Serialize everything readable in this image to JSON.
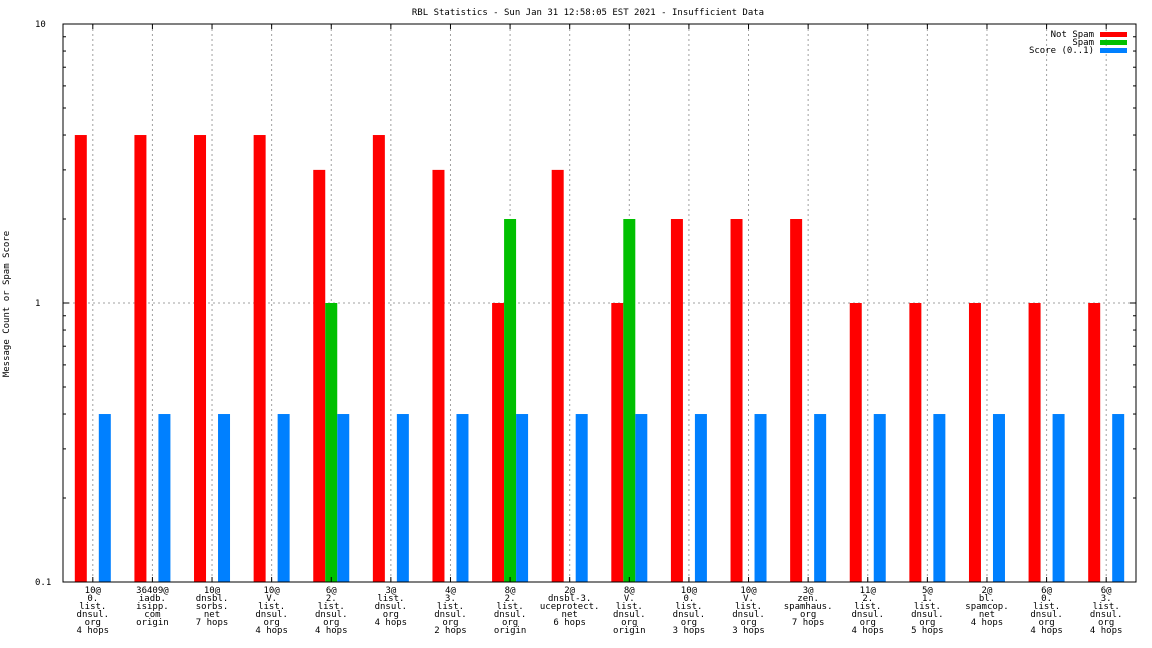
{
  "chart_data": {
    "type": "bar",
    "title": "RBL Statistics - Sun Jan 31 12:58:05 EST 2021 - Insufficient Data",
    "ylabel": "Message Count or Spam Score",
    "xlabel": "",
    "yscale": "log",
    "ylim": [
      0.1,
      10
    ],
    "yticks": [
      {
        "value": 0.1,
        "label": "0.1"
      },
      {
        "value": 1,
        "label": "1"
      },
      {
        "value": 10,
        "label": "10"
      }
    ],
    "grid": true,
    "legend_position": "top-right",
    "categories": [
      [
        "10@",
        "0.",
        "list.",
        "dnsul.",
        "org",
        "4 hops"
      ],
      [
        "36409@",
        "iadb.",
        "isipp.",
        "com",
        "origin"
      ],
      [
        "10@",
        "dnsbl.",
        "sorbs.",
        "net",
        "7 hops"
      ],
      [
        "10@",
        "V.",
        "list.",
        "dnsul.",
        "org",
        "4 hops"
      ],
      [
        "6@",
        "2.",
        "list.",
        "dnsul.",
        "org",
        "4 hops"
      ],
      [
        "3@",
        "list.",
        "dnsul.",
        "org",
        "4 hops"
      ],
      [
        "4@",
        "3.",
        "list.",
        "dnsul.",
        "org",
        "2 hops"
      ],
      [
        "8@",
        "2.",
        "list.",
        "dnsul.",
        "org",
        "origin"
      ],
      [
        "2@",
        "dnsbl-3.",
        "uceprotect.",
        "net",
        "6 hops"
      ],
      [
        "8@",
        "V.",
        "list.",
        "dnsul.",
        "org",
        "origin"
      ],
      [
        "10@",
        "0.",
        "list.",
        "dnsul.",
        "org",
        "3 hops"
      ],
      [
        "10@",
        "V.",
        "list.",
        "dnsul.",
        "org",
        "3 hops"
      ],
      [
        "3@",
        "zen.",
        "spamhaus.",
        "org",
        "7 hops"
      ],
      [
        "11@",
        "2.",
        "list.",
        "dnsul.",
        "org",
        "4 hops"
      ],
      [
        "5@",
        "1.",
        "list.",
        "dnsul.",
        "org",
        "5 hops"
      ],
      [
        "2@",
        "bl.",
        "spamcop.",
        "net",
        "4 hops"
      ],
      [
        "6@",
        "0.",
        "list.",
        "dnsul.",
        "org",
        "4 hops"
      ],
      [
        "6@",
        "3.",
        "list.",
        "dnsul.",
        "org",
        "4 hops"
      ]
    ],
    "series": [
      {
        "name": "Not Spam",
        "color": "#ff0000",
        "values": [
          4,
          4,
          4,
          4,
          3,
          4,
          3,
          1,
          3,
          1,
          2,
          2,
          2,
          1,
          1,
          1,
          1,
          1
        ]
      },
      {
        "name": "Spam",
        "color": "#00c000",
        "values": [
          0,
          0,
          0,
          0,
          1,
          0,
          0,
          2,
          0,
          2,
          0,
          0,
          0,
          0,
          0,
          0,
          0,
          0
        ]
      },
      {
        "name": "Score (0..1)",
        "color": "#0080ff",
        "values": [
          0.4,
          0.4,
          0.4,
          0.4,
          0.4,
          0.4,
          0.4,
          0.4,
          0.4,
          0.4,
          0.4,
          0.4,
          0.4,
          0.4,
          0.4,
          0.4,
          0.4,
          0.4
        ]
      }
    ]
  }
}
